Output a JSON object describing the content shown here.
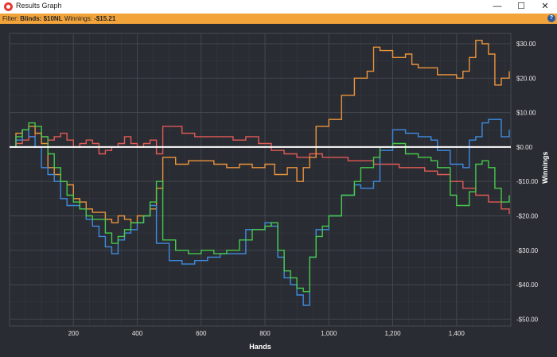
{
  "window": {
    "title": "Results Graph",
    "icon": "results-graph-app-icon",
    "minimize_glyph": "—",
    "maximize_glyph": "☐",
    "close_glyph": "✕"
  },
  "filter_bar": {
    "filter_label": "Filter:",
    "blinds_label": "Blinds: $10NL",
    "winnings_label": "Winnings:",
    "winnings_value": "-$15.21",
    "help_glyph": "?"
  },
  "chart_data": {
    "type": "line",
    "xlabel": "Hands",
    "ylabel": "Winnings",
    "xlim": [
      0,
      1570
    ],
    "ylim": [
      -52,
      33
    ],
    "x_ticks": [
      200,
      400,
      600,
      800,
      1000,
      1200,
      1400
    ],
    "x_tick_labels": [
      "200",
      "400",
      "600",
      "800",
      "1,000",
      "1,200",
      "1,400"
    ],
    "y_ticks": [
      30,
      20,
      10,
      0,
      -10,
      -20,
      -30,
      -40,
      -50
    ],
    "y_tick_labels": [
      "$30.00",
      "$20.00",
      "$10.00",
      "$0.00",
      "-$10.00",
      "-$20.00",
      "-$30.00",
      "-$40.00",
      "-$50.00"
    ],
    "grid": true,
    "colors": {
      "background": "#2a2c33",
      "grid": "#464a52",
      "zero_line": "#ffffff",
      "axis_text": "#e6e6e6"
    },
    "series": [
      {
        "color": "#e05a55",
        "x": [
          0,
          20,
          40,
          60,
          80,
          100,
          120,
          140,
          160,
          180,
          200,
          220,
          240,
          260,
          280,
          300,
          320,
          340,
          360,
          380,
          400,
          420,
          440,
          460,
          480,
          500,
          540,
          580,
          620,
          660,
          700,
          740,
          780,
          820,
          860,
          900,
          940,
          980,
          1020,
          1060,
          1100,
          1140,
          1180,
          1220,
          1260,
          1300,
          1340,
          1380,
          1420,
          1460,
          1500,
          1540,
          1565
        ],
        "y": [
          0,
          1,
          2,
          3,
          4,
          3,
          2,
          3,
          4,
          2,
          0,
          1,
          2,
          1,
          -2,
          -1,
          0,
          1,
          3,
          1,
          0,
          1,
          2,
          -2,
          6,
          6,
          4,
          3,
          3,
          3,
          2,
          3,
          1,
          -1,
          -2,
          -3,
          -2,
          -3,
          -3,
          -4,
          -4,
          -5,
          -5,
          -6,
          -6,
          -7,
          -8,
          -10,
          -12,
          -14,
          -16,
          -18,
          -19.5
        ]
      },
      {
        "color": "#ea943b",
        "x": [
          0,
          20,
          40,
          60,
          80,
          100,
          120,
          140,
          160,
          180,
          200,
          220,
          240,
          260,
          280,
          300,
          320,
          340,
          360,
          380,
          400,
          420,
          440,
          460,
          480,
          520,
          560,
          600,
          640,
          680,
          720,
          760,
          800,
          830,
          850,
          870,
          900,
          920,
          940,
          960,
          1000,
          1040,
          1080,
          1100,
          1120,
          1140,
          1160,
          1200,
          1240,
          1260,
          1280,
          1300,
          1340,
          1380,
          1400,
          1420,
          1440,
          1460,
          1480,
          1500,
          1520,
          1540,
          1565
        ],
        "y": [
          0,
          4,
          5,
          6,
          4,
          1,
          -6,
          -8,
          -10,
          -11,
          -15,
          -16,
          -18,
          -19,
          -19,
          -21,
          -22,
          -20,
          -21,
          -22,
          -20,
          -20,
          -18,
          -12,
          -3,
          -5,
          -4,
          -4,
          -5,
          -6,
          -5,
          -6,
          -5,
          -8,
          -8,
          -6,
          -10,
          -6,
          -3,
          6,
          8,
          15,
          20,
          20,
          22,
          29,
          28,
          26,
          27,
          24,
          23,
          23,
          21,
          21,
          20,
          22,
          26,
          31,
          30,
          27,
          18,
          20,
          22
        ]
      },
      {
        "color": "#3d8be0",
        "x": [
          0,
          20,
          40,
          60,
          80,
          100,
          120,
          140,
          160,
          180,
          200,
          220,
          240,
          260,
          280,
          300,
          320,
          340,
          360,
          380,
          400,
          420,
          440,
          460,
          500,
          540,
          580,
          620,
          660,
          700,
          740,
          780,
          800,
          820,
          840,
          860,
          880,
          900,
          920,
          940,
          960,
          1000,
          1040,
          1080,
          1100,
          1140,
          1160,
          1200,
          1240,
          1280,
          1320,
          1340,
          1380,
          1420,
          1440,
          1460,
          1480,
          1500,
          1540,
          1565
        ],
        "y": [
          0,
          2,
          5,
          3,
          0,
          -6,
          -8,
          -10,
          -15,
          -17,
          -17,
          -18,
          -21,
          -23,
          -26,
          -29,
          -31,
          -27,
          -25,
          -24,
          -22,
          -20,
          -17,
          -28,
          -33,
          -34,
          -33,
          -32,
          -31,
          -31,
          -24,
          -24,
          -22,
          -23,
          -32,
          -38,
          -40,
          -43,
          -46,
          -32,
          -24,
          -20,
          -14,
          -11,
          -12,
          -10,
          -1,
          5,
          4,
          3,
          2,
          -1,
          -5,
          -6,
          2,
          3,
          7,
          8,
          3,
          5
        ]
      },
      {
        "color": "#46c94b",
        "x": [
          0,
          20,
          40,
          60,
          80,
          100,
          120,
          140,
          160,
          180,
          200,
          220,
          240,
          260,
          280,
          300,
          320,
          340,
          360,
          380,
          400,
          420,
          440,
          460,
          480,
          520,
          560,
          600,
          640,
          680,
          720,
          760,
          800,
          820,
          840,
          860,
          880,
          900,
          920,
          940,
          960,
          980,
          1000,
          1040,
          1080,
          1100,
          1140,
          1160,
          1200,
          1240,
          1280,
          1320,
          1340,
          1380,
          1400,
          1420,
          1440,
          1460,
          1480,
          1500,
          1520,
          1540,
          1565
        ],
        "y": [
          0,
          3,
          5,
          7,
          6,
          3,
          -2,
          -6,
          -10,
          -14,
          -16,
          -18,
          -20,
          -21,
          -21,
          -25,
          -28,
          -26,
          -24,
          -22,
          -22,
          -20,
          -16,
          -10,
          -27,
          -30,
          -31,
          -30,
          -31,
          -30,
          -27,
          -24,
          -23,
          -22,
          -30,
          -36,
          -38,
          -41,
          -42,
          -32,
          -26,
          -23,
          -20,
          -14,
          -10,
          -6,
          -3,
          0,
          1,
          -2,
          -3,
          -4,
          -6,
          -14,
          -17,
          -17,
          -13,
          -5,
          -4,
          -6,
          -12,
          -16,
          -14
        ]
      }
    ]
  }
}
